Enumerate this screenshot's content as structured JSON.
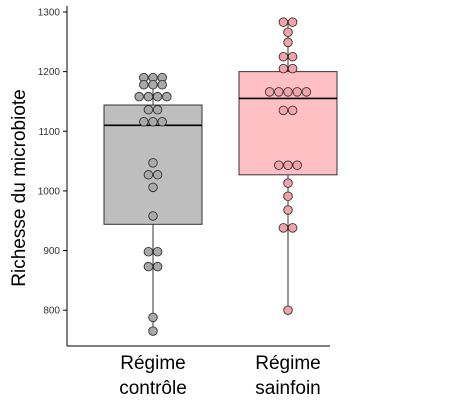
{
  "chart_data": {
    "type": "box",
    "title": "",
    "xlabel": "",
    "ylabel": "Richesse du microbiote",
    "ylim": [
      740,
      1310
    ],
    "yticks": [
      800,
      900,
      1000,
      1100,
      1200,
      1300
    ],
    "grid": false,
    "groups": [
      {
        "name": "Régime contrôle",
        "label_lines": [
          "Régime",
          "contrôle"
        ],
        "box_color": "#bebebe",
        "point_color": "#a9a9a9",
        "whisker_low": 765,
        "q1": 944,
        "median": 1110,
        "q3": 1144,
        "whisker_high": 1190,
        "points": [
          1190,
          1190,
          1190,
          1178,
          1178,
          1178,
          1158,
          1158,
          1158,
          1158,
          1136,
          1136,
          1116,
          1116,
          1116,
          1047,
          1027,
          1027,
          1006,
          958,
          898,
          898,
          873,
          873,
          788,
          765
        ]
      },
      {
        "name": "Régime sainfoin",
        "label_lines": [
          "Régime",
          "sainfoin"
        ],
        "box_color": "#ffc0c4",
        "point_color": "#f4a3a8",
        "whisker_low": 800,
        "q1": 1027,
        "median": 1155,
        "q3": 1200,
        "whisker_high": 1283,
        "points": [
          1283,
          1283,
          1266,
          1249,
          1225,
          1225,
          1205,
          1205,
          1166,
          1166,
          1166,
          1166,
          1166,
          1135,
          1135,
          1043,
          1043,
          1043,
          1013,
          991,
          968,
          938,
          938,
          800
        ]
      }
    ],
    "colors": {
      "axis": "#000000",
      "box_outline": "#333333",
      "median": "#000000",
      "point_outline": "#333333"
    }
  }
}
